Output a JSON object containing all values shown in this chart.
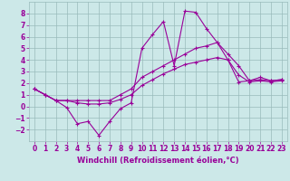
{
  "xlabel": "Windchill (Refroidissement éolien,°C)",
  "xlim": [
    -0.5,
    23.5
  ],
  "ylim": [
    -3,
    9
  ],
  "xticks": [
    0,
    1,
    2,
    3,
    4,
    5,
    6,
    7,
    8,
    9,
    10,
    11,
    12,
    13,
    14,
    15,
    16,
    17,
    18,
    19,
    20,
    21,
    22,
    23
  ],
  "yticks": [
    -2,
    -1,
    0,
    1,
    2,
    3,
    4,
    5,
    6,
    7,
    8
  ],
  "bg_color": "#cce8e8",
  "line_color": "#990099",
  "grid_color": "#99bbbb",
  "lines": [
    {
      "x": [
        0,
        1,
        2,
        3,
        4,
        5,
        6,
        7,
        8,
        9,
        10,
        11,
        12,
        13,
        14,
        15,
        16,
        17,
        18,
        19,
        20,
        21,
        22,
        23
      ],
      "y": [
        1.5,
        1.0,
        0.5,
        -0.1,
        -1.5,
        -1.3,
        -2.5,
        -1.3,
        -0.2,
        0.3,
        5.0,
        6.2,
        7.3,
        3.5,
        8.2,
        8.1,
        6.7,
        5.5,
        4.0,
        2.1,
        2.2,
        2.5,
        2.2,
        2.3
      ]
    },
    {
      "x": [
        0,
        1,
        2,
        3,
        4,
        5,
        6,
        7,
        8,
        9,
        10,
        11,
        12,
        13,
        14,
        15,
        16,
        17,
        18,
        19,
        20,
        21,
        22,
        23
      ],
      "y": [
        1.5,
        1.0,
        0.5,
        0.5,
        0.5,
        0.5,
        0.5,
        0.5,
        1.0,
        1.5,
        2.5,
        3.0,
        3.5,
        4.0,
        4.5,
        5.0,
        5.2,
        5.5,
        4.5,
        3.5,
        2.2,
        2.3,
        2.2,
        2.3
      ]
    },
    {
      "x": [
        0,
        1,
        2,
        3,
        4,
        5,
        6,
        7,
        8,
        9,
        10,
        11,
        12,
        13,
        14,
        15,
        16,
        17,
        18,
        19,
        20,
        21,
        22,
        23
      ],
      "y": [
        1.5,
        1.0,
        0.5,
        0.5,
        0.3,
        0.2,
        0.2,
        0.3,
        0.6,
        1.0,
        1.8,
        2.3,
        2.8,
        3.2,
        3.6,
        3.8,
        4.0,
        4.2,
        4.0,
        2.7,
        2.1,
        2.2,
        2.1,
        2.2
      ]
    }
  ]
}
